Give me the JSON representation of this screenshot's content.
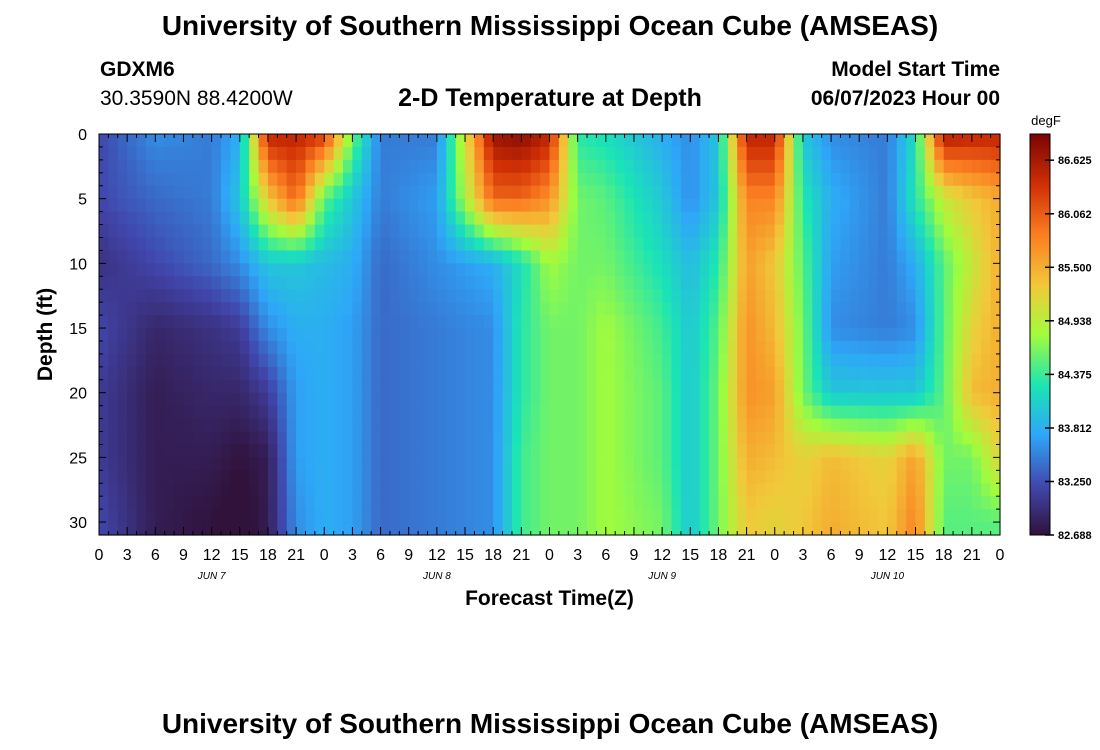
{
  "title": "University of Southern Mississippi Ocean Cube (AMSEAS)",
  "station": {
    "id": "GDXM6",
    "coords": "30.3590N  88.4200W"
  },
  "model": {
    "label": "Model Start Time",
    "date": "06/07/2023 Hour 00"
  },
  "plot_title": "2-D Temperature at Depth",
  "footer_title": "University of Southern Mississippi Ocean Cube (AMSEAS)",
  "chart_data": {
    "type": "heatmap",
    "title": "2-D Temperature at Depth",
    "xlabel": "Forecast Time(Z)",
    "ylabel": "Depth (ft)",
    "x_ticks": [
      "0",
      "3",
      "6",
      "9",
      "12",
      "15",
      "18",
      "21",
      "0",
      "3",
      "6",
      "9",
      "12",
      "15",
      "18",
      "21",
      "0",
      "3",
      "6",
      "9",
      "12",
      "15",
      "18",
      "21",
      "0",
      "3",
      "6",
      "9",
      "12",
      "15",
      "18",
      "21",
      "0"
    ],
    "x_range_hours": [
      0,
      96
    ],
    "day_labels": [
      {
        "label": "JUN 7",
        "hour": 12
      },
      {
        "label": "JUN 8",
        "hour": 36
      },
      {
        "label": "JUN 9",
        "hour": 60
      },
      {
        "label": "JUN 10",
        "hour": 84
      }
    ],
    "y_ticks": [
      0,
      5,
      10,
      15,
      20,
      25,
      30
    ],
    "y_range": [
      0,
      31
    ],
    "colorbar": {
      "unit": "degF",
      "min": 82.688,
      "max": 86.9,
      "tick_labels": [
        "86.625",
        "86.062",
        "85.500",
        "84.938",
        "84.375",
        "83.812",
        "83.250",
        "82.688"
      ],
      "tick_values": [
        86.625,
        86.062,
        85.5,
        84.938,
        84.375,
        83.812,
        83.25,
        82.688
      ]
    },
    "hours": [
      0,
      6,
      12,
      15,
      18,
      21,
      24,
      27,
      30,
      36,
      42,
      45,
      48,
      51,
      54,
      60,
      63,
      66,
      69,
      72,
      75,
      78,
      84,
      87,
      90,
      93,
      96
    ],
    "depths": [
      0,
      5,
      10,
      15,
      20,
      25,
      30
    ],
    "temps_degF": [
      [
        83.2,
        83.6,
        83.5,
        83.8,
        86.5,
        86.5,
        86.3,
        84.6,
        83.5,
        83.5,
        86.7,
        86.8,
        86.5,
        84.3,
        84.2,
        83.8,
        83.6,
        84.0,
        86.5,
        86.5,
        84.0,
        83.6,
        83.5,
        84.2,
        86.6,
        86.5,
        86.5
      ],
      [
        83.2,
        83.4,
        83.5,
        84.0,
        85.3,
        86.0,
        84.5,
        84.0,
        83.5,
        83.7,
        86.0,
        86.0,
        85.7,
        84.6,
        84.5,
        84.0,
        83.6,
        84.0,
        85.8,
        85.8,
        84.3,
        83.8,
        83.5,
        84.3,
        85.0,
        85.3,
        85.5
      ],
      [
        83.0,
        83.2,
        83.4,
        83.6,
        84.0,
        84.0,
        83.9,
        83.8,
        83.4,
        83.6,
        83.8,
        84.2,
        84.8,
        84.6,
        84.6,
        84.2,
        83.9,
        84.3,
        85.6,
        85.3,
        84.5,
        83.7,
        83.5,
        83.8,
        84.5,
        85.0,
        85.5
      ],
      [
        83.2,
        82.9,
        83.0,
        83.1,
        83.6,
        83.8,
        83.8,
        83.7,
        83.4,
        83.5,
        83.6,
        84.3,
        84.6,
        84.6,
        84.8,
        84.4,
        84.0,
        84.5,
        85.7,
        85.4,
        84.6,
        83.6,
        83.5,
        83.6,
        84.5,
        85.2,
        85.5
      ],
      [
        83.1,
        82.8,
        82.9,
        82.9,
        83.1,
        83.7,
        83.8,
        83.7,
        83.4,
        83.5,
        83.6,
        84.3,
        84.6,
        84.6,
        84.8,
        84.5,
        84.0,
        84.6,
        85.7,
        85.6,
        84.6,
        84.0,
        84.0,
        84.0,
        84.5,
        85.4,
        85.5
      ],
      [
        83.1,
        82.8,
        82.8,
        82.7,
        82.8,
        83.7,
        83.8,
        83.7,
        83.4,
        83.5,
        83.6,
        84.4,
        84.6,
        84.6,
        84.8,
        84.5,
        84.0,
        84.6,
        85.5,
        85.4,
        85.2,
        85.4,
        85.2,
        85.6,
        84.6,
        84.6,
        85.2
      ],
      [
        83.2,
        82.8,
        82.7,
        82.6,
        82.8,
        83.6,
        83.8,
        83.7,
        83.4,
        83.5,
        83.6,
        84.4,
        84.6,
        84.6,
        84.8,
        84.6,
        84.0,
        84.6,
        85.3,
        85.2,
        85.3,
        85.5,
        85.3,
        85.8,
        84.5,
        84.5,
        84.5
      ]
    ]
  }
}
